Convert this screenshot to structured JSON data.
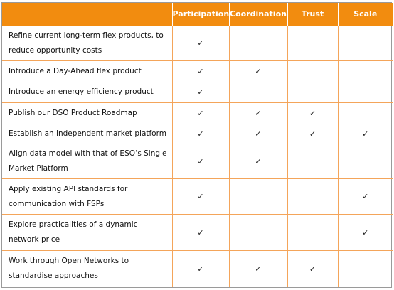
{
  "columns": [
    "Participation",
    "Coordination",
    "Trust",
    "Scale"
  ],
  "check_glyph": "✓",
  "accent_color": "#f28c0f",
  "rows": [
    {
      "label": "Refine current long-term flex products, to reduce opportunity costs",
      "participation": "✓",
      "coordination": "",
      "trust": "",
      "scale": ""
    },
    {
      "label": "Introduce a Day-Ahead flex product",
      "participation": "✓",
      "coordination": "✓",
      "trust": "",
      "scale": ""
    },
    {
      "label": "Introduce an energy efficiency product",
      "participation": "✓",
      "coordination": "",
      "trust": "",
      "scale": ""
    },
    {
      "label": "Publish our DSO Product Roadmap",
      "participation": "✓",
      "coordination": "✓",
      "trust": "✓",
      "scale": ""
    },
    {
      "label": "Establish an independent market platform",
      "participation": "✓",
      "coordination": "✓",
      "trust": "✓",
      "scale": "✓"
    },
    {
      "label": "Align data model with that of ESO’s Single Market Platform",
      "participation": "✓",
      "coordination": "✓",
      "trust": "",
      "scale": ""
    },
    {
      "label": "Apply existing API standards for communication with FSPs",
      "participation": "✓",
      "coordination": "",
      "trust": "",
      "scale": "✓"
    },
    {
      "label": "Explore practicalities of a dynamic network price",
      "participation": "✓",
      "coordination": "",
      "trust": "",
      "scale": "✓"
    },
    {
      "label": "Work through Open Networks to standardise approaches",
      "participation": "✓",
      "coordination": "✓",
      "trust": "✓",
      "scale": ""
    }
  ]
}
